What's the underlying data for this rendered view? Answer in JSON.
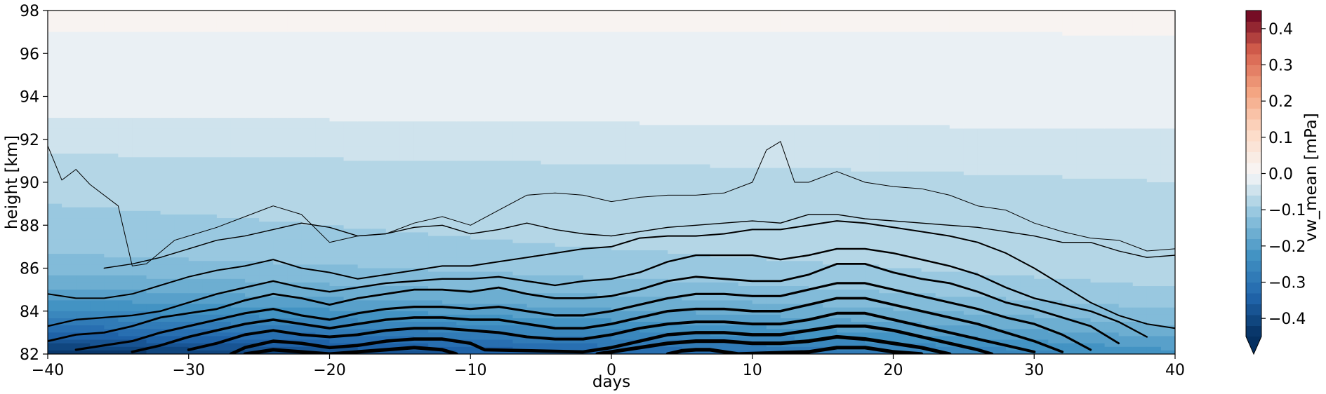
{
  "chart_data": {
    "type": "contourf",
    "title": "",
    "xlabel": "days",
    "ylabel": "height [km]",
    "xlim": [
      -40,
      40
    ],
    "ylim": [
      82,
      98
    ],
    "xticks": [
      -40,
      -30,
      -20,
      -10,
      0,
      10,
      20,
      30,
      40
    ],
    "xtick_labels": [
      "−40",
      "−30",
      "−20",
      "−10",
      "0",
      "10",
      "20",
      "30",
      "40"
    ],
    "yticks": [
      82,
      84,
      86,
      88,
      90,
      92,
      94,
      96,
      98
    ],
    "ytick_labels": [
      "82",
      "84",
      "86",
      "88",
      "90",
      "92",
      "94",
      "96",
      "98"
    ],
    "colorbar": {
      "label": "vw_mean [mPa]",
      "cmap": "RdBu_r",
      "range": [
        -0.45,
        0.45
      ],
      "extend": "min",
      "ticks": [
        -0.4,
        -0.3,
        -0.2,
        -0.1,
        0.0,
        0.1,
        0.2,
        0.3,
        0.4
      ],
      "tick_labels": [
        "−0.4",
        "−0.3",
        "−0.2",
        "−0.1",
        "0.0",
        "0.1",
        "0.2",
        "0.3",
        "0.4"
      ]
    },
    "filled_contour_levels": [
      -0.45,
      -0.42,
      -0.39,
      -0.36,
      -0.33,
      -0.3,
      -0.27,
      -0.24,
      -0.21,
      -0.18,
      -0.15,
      -0.12,
      -0.09,
      -0.06,
      -0.03,
      0.0
    ],
    "contour_lines": {
      "color": "#000000",
      "note": "line width increases with |value|",
      "lines": [
        {
          "days": [
            -40,
            -39,
            -38,
            -37,
            -35,
            -34,
            -33,
            -31,
            -30,
            -28,
            -26,
            -24,
            -22,
            -20,
            -18,
            -16,
            -14,
            -12,
            -10,
            -8,
            -6,
            -4,
            -2,
            0,
            2,
            4,
            6,
            8,
            10,
            11,
            12,
            13,
            14,
            16,
            18,
            20,
            22,
            24,
            26,
            28,
            30,
            32,
            34,
            36,
            38,
            40
          ],
          "height": [
            91.7,
            90.1,
            90.6,
            89.9,
            88.9,
            86.1,
            86.2,
            87.3,
            87.5,
            87.9,
            88.4,
            88.9,
            88.5,
            87.2,
            87.5,
            87.6,
            88.1,
            88.4,
            88.0,
            88.7,
            89.4,
            89.5,
            89.4,
            89.1,
            89.3,
            89.4,
            89.4,
            89.5,
            90.0,
            91.5,
            91.9,
            90.0,
            90.0,
            90.5,
            90.0,
            89.8,
            89.7,
            89.4,
            88.9,
            88.7,
            88.1,
            87.7,
            87.4,
            87.3,
            86.8,
            86.9
          ]
        },
        {
          "days": [
            -36,
            -34,
            -32,
            -30,
            -28,
            -26,
            -24,
            -22,
            -20,
            -18,
            -16,
            -14,
            -12,
            -10,
            -8,
            -6,
            -4,
            -2,
            0,
            2,
            4,
            6,
            8,
            10,
            12,
            14,
            16,
            18,
            20,
            22,
            24,
            26,
            28,
            30,
            32,
            34,
            36,
            38,
            40
          ],
          "height": [
            86.0,
            86.2,
            86.5,
            86.9,
            87.3,
            87.5,
            87.8,
            88.1,
            87.9,
            87.5,
            87.6,
            87.9,
            88.0,
            87.6,
            87.8,
            88.1,
            87.8,
            87.6,
            87.5,
            87.7,
            87.9,
            88.0,
            88.1,
            88.2,
            88.1,
            88.5,
            88.5,
            88.3,
            88.2,
            88.1,
            88.0,
            87.9,
            87.7,
            87.5,
            87.2,
            87.2,
            86.8,
            86.5,
            86.6
          ]
        },
        {
          "days": [
            -40,
            -38,
            -36,
            -34,
            -32,
            -30,
            -28,
            -26,
            -24,
            -22,
            -20,
            -18,
            -16,
            -14,
            -12,
            -10,
            -8,
            -6,
            -4,
            -2,
            0,
            2,
            4,
            6,
            8,
            10,
            12,
            14,
            16,
            18,
            20,
            22,
            24,
            26,
            28,
            30,
            32,
            34,
            36,
            38,
            40
          ],
          "height": [
            84.8,
            84.6,
            84.6,
            84.8,
            85.2,
            85.6,
            85.9,
            86.1,
            86.4,
            86.0,
            85.8,
            85.5,
            85.7,
            85.9,
            86.1,
            86.1,
            86.3,
            86.5,
            86.7,
            86.9,
            87.0,
            87.4,
            87.5,
            87.5,
            87.6,
            87.8,
            87.8,
            88.0,
            88.2,
            88.1,
            87.9,
            87.7,
            87.5,
            87.2,
            86.7,
            86.0,
            85.2,
            84.4,
            83.8,
            83.4,
            83.2
          ]
        },
        {
          "days": [
            -40,
            -38,
            -36,
            -34,
            -32,
            -30,
            -28,
            -26,
            -24,
            -22,
            -20,
            -18,
            -16,
            -14,
            -12,
            -10,
            -8,
            -6,
            -4,
            -2,
            0,
            2,
            4,
            6,
            8,
            10,
            12,
            14,
            16,
            18,
            20,
            22,
            24,
            26,
            28,
            30,
            32,
            34,
            36,
            38
          ],
          "height": [
            83.3,
            83.6,
            83.7,
            83.8,
            84.0,
            84.4,
            84.8,
            85.1,
            85.4,
            85.1,
            84.9,
            85.1,
            85.3,
            85.4,
            85.5,
            85.5,
            85.6,
            85.4,
            85.2,
            85.4,
            85.5,
            85.8,
            86.3,
            86.6,
            86.6,
            86.6,
            86.4,
            86.6,
            86.9,
            86.9,
            86.7,
            86.4,
            86.1,
            85.7,
            85.1,
            84.6,
            84.3,
            84.0,
            83.5,
            82.8
          ]
        },
        {
          "days": [
            -40,
            -38,
            -36,
            -34,
            -32,
            -30,
            -28,
            -26,
            -24,
            -22,
            -20,
            -18,
            -16,
            -14,
            -12,
            -10,
            -8,
            -6,
            -4,
            -2,
            0,
            2,
            4,
            6,
            8,
            10,
            12,
            14,
            16,
            18,
            20,
            22,
            24,
            26,
            28,
            30,
            32,
            34,
            36
          ],
          "height": [
            82.6,
            82.9,
            83.0,
            83.3,
            83.7,
            83.9,
            84.1,
            84.5,
            84.8,
            84.6,
            84.3,
            84.6,
            84.8,
            85.0,
            85.0,
            84.9,
            85.1,
            84.8,
            84.6,
            84.6,
            84.7,
            85.0,
            85.4,
            85.6,
            85.5,
            85.4,
            85.4,
            85.7,
            86.2,
            86.2,
            85.8,
            85.5,
            85.3,
            84.9,
            84.4,
            84.1,
            83.7,
            83.3,
            82.5
          ]
        },
        {
          "days": [
            -38,
            -36,
            -34,
            -32,
            -30,
            -28,
            -26,
            -24,
            -22,
            -20,
            -18,
            -16,
            -14,
            -12,
            -10,
            -8,
            -6,
            -4,
            -2,
            0,
            2,
            4,
            6,
            8,
            10,
            12,
            14,
            16,
            18,
            20,
            22,
            24,
            26,
            28,
            30,
            32,
            34
          ],
          "height": [
            82.2,
            82.4,
            82.6,
            83.0,
            83.3,
            83.6,
            83.9,
            84.1,
            83.8,
            83.6,
            83.9,
            84.1,
            84.2,
            84.2,
            84.1,
            84.2,
            84.0,
            83.8,
            83.8,
            84.0,
            84.3,
            84.6,
            84.8,
            84.8,
            84.7,
            84.7,
            85.0,
            85.3,
            85.3,
            85.0,
            84.7,
            84.4,
            84.1,
            83.7,
            83.4,
            82.9,
            82.2
          ]
        },
        {
          "days": [
            -34,
            -32,
            -30,
            -28,
            -26,
            -24,
            -22,
            -20,
            -18,
            -16,
            -14,
            -12,
            -10,
            -8,
            -6,
            -4,
            -2,
            0,
            2,
            4,
            6,
            8,
            10,
            12,
            14,
            16,
            18,
            20,
            22,
            24,
            26,
            28,
            30,
            32
          ],
          "height": [
            82.1,
            82.4,
            82.8,
            83.1,
            83.4,
            83.6,
            83.4,
            83.2,
            83.4,
            83.6,
            83.7,
            83.7,
            83.6,
            83.6,
            83.4,
            83.2,
            83.2,
            83.4,
            83.7,
            84.0,
            84.1,
            84.1,
            84.0,
            84.0,
            84.3,
            84.6,
            84.6,
            84.3,
            84.0,
            83.7,
            83.4,
            83.0,
            82.6,
            82.1
          ]
        },
        {
          "days": [
            -30,
            -28,
            -26,
            -24,
            -22,
            -20,
            -18,
            -16,
            -14,
            -12,
            -10,
            -8,
            -6,
            -4,
            -2,
            0,
            2,
            4,
            6,
            8,
            10,
            12,
            14,
            16,
            18,
            20,
            22,
            24,
            26,
            28,
            30
          ],
          "height": [
            82.2,
            82.5,
            82.9,
            83.1,
            82.9,
            82.8,
            82.9,
            83.1,
            83.2,
            83.2,
            83.1,
            83.0,
            82.8,
            82.7,
            82.7,
            82.9,
            83.2,
            83.4,
            83.5,
            83.5,
            83.4,
            83.4,
            83.6,
            83.9,
            83.9,
            83.6,
            83.3,
            83.0,
            82.7,
            82.4,
            82.1
          ]
        },
        {
          "days": [
            -27,
            -26,
            -24,
            -22,
            -20,
            -18,
            -16,
            -14,
            -12,
            -10,
            -9,
            -2,
            0,
            2,
            4,
            6,
            8,
            10,
            12,
            14,
            16,
            18,
            20,
            22,
            24,
            26,
            27
          ],
          "height": [
            82.0,
            82.3,
            82.6,
            82.5,
            82.3,
            82.4,
            82.6,
            82.7,
            82.7,
            82.5,
            82.2,
            82.1,
            82.3,
            82.6,
            82.9,
            83.0,
            83.0,
            82.9,
            82.9,
            83.1,
            83.3,
            83.3,
            83.1,
            82.8,
            82.5,
            82.2,
            82.0
          ]
        },
        {
          "days": [
            -26,
            -24,
            -22,
            -20,
            -18,
            -16,
            -14,
            -12,
            -11
          ],
          "height": [
            82.0,
            82.2,
            82.1,
            82.0,
            82.1,
            82.2,
            82.3,
            82.2,
            82.0
          ]
        },
        {
          "days": [
            -1,
            0,
            2,
            4,
            6,
            8,
            10,
            12,
            14,
            16,
            18,
            20,
            22,
            24
          ],
          "height": [
            82.0,
            82.1,
            82.3,
            82.5,
            82.6,
            82.6,
            82.5,
            82.5,
            82.6,
            82.8,
            82.7,
            82.5,
            82.3,
            82.0
          ]
        },
        {
          "days": [
            4,
            5,
            6,
            7,
            8,
            9,
            14,
            16,
            18,
            20,
            22
          ],
          "height": [
            82.0,
            82.15,
            82.2,
            82.2,
            82.1,
            82.0,
            82.1,
            82.3,
            82.3,
            82.1,
            82.0
          ]
        }
      ]
    }
  }
}
